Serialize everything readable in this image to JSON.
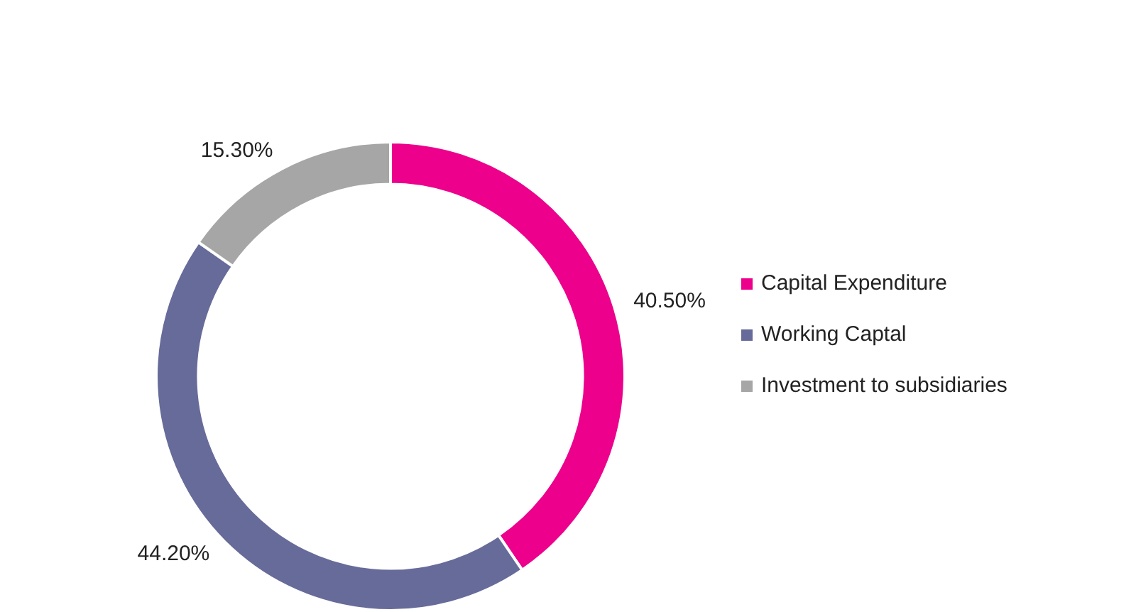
{
  "chart_data": {
    "type": "donut",
    "categories": [
      "Capital Expenditure",
      "Working Captal",
      "Investment to subsidiaries"
    ],
    "values": [
      40.5,
      44.2,
      15.3
    ],
    "colors": [
      "#ec008c",
      "#666b99",
      "#a6a6a6"
    ],
    "value_labels": [
      "40.50%",
      "44.20%",
      "15.30%"
    ],
    "legend": "right"
  }
}
